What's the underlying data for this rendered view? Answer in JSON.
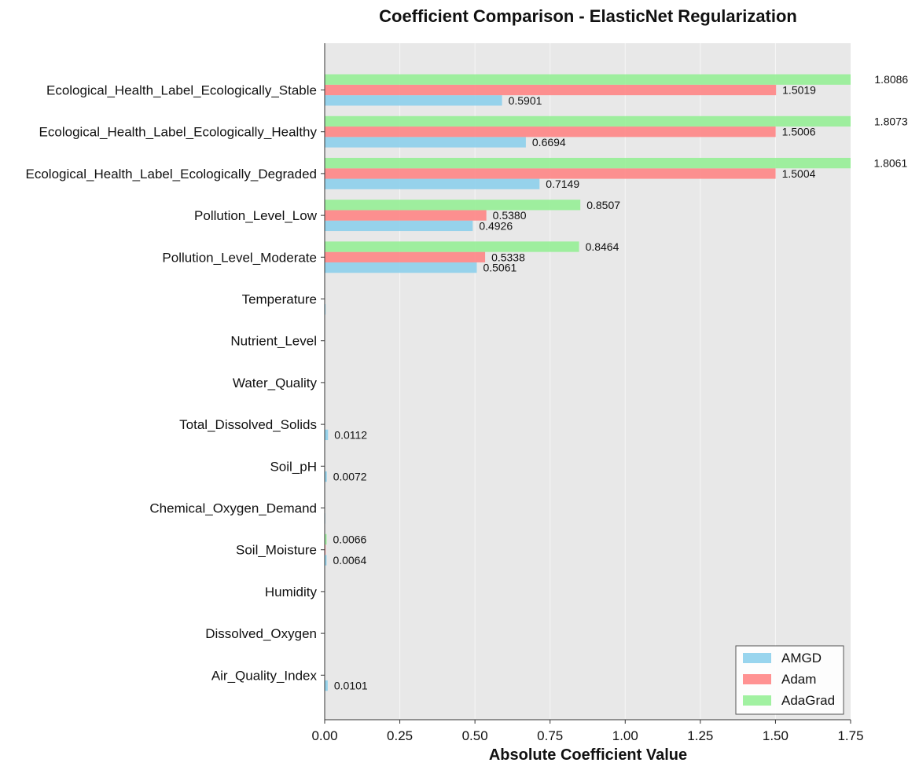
{
  "chart_data": {
    "type": "bar",
    "orientation": "horizontal",
    "title": "Coefficient Comparison - ElasticNet Regularization",
    "xlabel": "Absolute Coefficient Value",
    "ylabel": "",
    "xlim": [
      0,
      1.75
    ],
    "xticks": [
      "0.00",
      "0.25",
      "0.50",
      "0.75",
      "1.00",
      "1.25",
      "1.50",
      "1.75"
    ],
    "grid": "vertical",
    "legend_position": "bottom-right",
    "categories": [
      "Ecological_Health_Label_Ecologically_Stable",
      "Ecological_Health_Label_Ecologically_Healthy",
      "Ecological_Health_Label_Ecologically_Degraded",
      "Pollution_Level_Low",
      "Pollution_Level_Moderate",
      "Temperature",
      "Nutrient_Level",
      "Water_Quality",
      "Total_Dissolved_Solids",
      "Soil_pH",
      "Chemical_Oxygen_Demand",
      "Soil_Moisture",
      "Humidity",
      "Dissolved_Oxygen",
      "Air_Quality_Index"
    ],
    "series": [
      {
        "name": "AMGD",
        "color": "#87ceeb",
        "values": [
          0.5901,
          0.6694,
          0.7149,
          0.4926,
          0.5061,
          0.003,
          0,
          0,
          0.0112,
          0.0072,
          0.002,
          0.0064,
          0,
          0,
          0.0101
        ],
        "labels": [
          "0.5901",
          "0.6694",
          "0.7149",
          "0.4926",
          "0.5061",
          "",
          "",
          "",
          "0.0112",
          "0.0072",
          "",
          "0.0064",
          "",
          "",
          "0.0101"
        ]
      },
      {
        "name": "Adam",
        "color": "#ff7f7f",
        "values": [
          1.5019,
          1.5006,
          1.5004,
          0.538,
          0.5338,
          0,
          0,
          0,
          0,
          0,
          0,
          0.003,
          0,
          0,
          0
        ],
        "labels": [
          "1.5019",
          "1.5006",
          "1.5004",
          "0.5380",
          "0.5338",
          "",
          "",
          "",
          "",
          "",
          "",
          "",
          "",
          "",
          ""
        ]
      },
      {
        "name": "AdaGrad",
        "color": "#90ee90",
        "values": [
          1.8086,
          1.8073,
          1.8061,
          0.8507,
          0.8464,
          0,
          0,
          0,
          0,
          0,
          0,
          0.0066,
          0,
          0,
          0
        ],
        "labels": [
          "1.8086",
          "1.8073",
          "1.8061",
          "0.8507",
          "0.8464",
          "",
          "",
          "",
          "",
          "",
          "",
          "0.0066",
          "",
          "",
          ""
        ]
      }
    ]
  }
}
